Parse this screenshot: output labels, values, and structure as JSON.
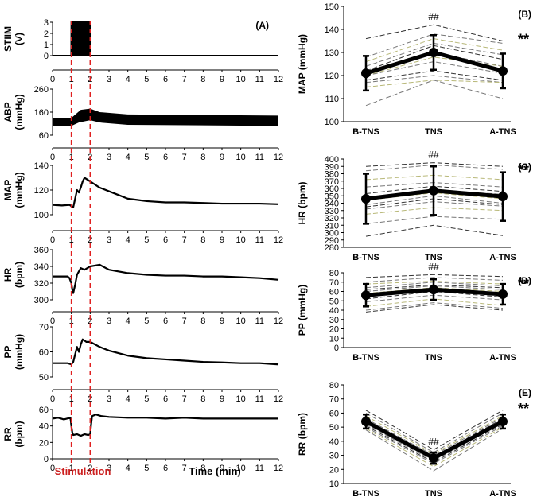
{
  "figure": {
    "panel_A_label": "(A)",
    "time_axis_label": "Time (min)",
    "stimulation_label": "Stimulation",
    "stimulation_window": [
      1,
      2
    ],
    "colors": {
      "trace": "#000000",
      "stim_line": "#e02020",
      "stim_text": "#cc1f1f",
      "grid_dash": "#444444",
      "olive": "#b8b878"
    }
  },
  "chart_data": [
    {
      "type": "line",
      "panel": "A",
      "title": "",
      "ylabel": "STIIM",
      "yunit": "(V)",
      "x_ticks": [
        0,
        1,
        2,
        3,
        4,
        5,
        6,
        7,
        8,
        9,
        10,
        11,
        12
      ],
      "ylim": [
        0,
        3
      ],
      "y_ticks": [
        0,
        1,
        2,
        3
      ],
      "series": [
        {
          "name": "STIIM",
          "points": [
            [
              0,
              0
            ],
            [
              0.99,
              0
            ],
            [
              1,
              3
            ],
            [
              1.99,
              3
            ],
            [
              2,
              0
            ],
            [
              12,
              0
            ]
          ]
        }
      ]
    },
    {
      "type": "line",
      "panel": "A",
      "ylabel": "ABP",
      "yunit": "(mmHg)",
      "x_ticks": [
        0,
        1,
        2,
        3,
        4,
        5,
        6,
        7,
        8,
        9,
        10,
        11,
        12
      ],
      "ylim": [
        60,
        260
      ],
      "y_ticks": [
        60,
        160,
        260
      ],
      "band": {
        "lower": [
          [
            0,
            100
          ],
          [
            1,
            100
          ],
          [
            1.4,
            115
          ],
          [
            2,
            125
          ],
          [
            2.5,
            115
          ],
          [
            4,
            105
          ],
          [
            12,
            100
          ]
        ],
        "upper": [
          [
            0,
            135
          ],
          [
            1,
            135
          ],
          [
            1.5,
            170
          ],
          [
            2,
            175
          ],
          [
            2.5,
            160
          ],
          [
            4,
            150
          ],
          [
            12,
            145
          ]
        ]
      }
    },
    {
      "type": "line",
      "panel": "A",
      "ylabel": "MAP",
      "yunit": "(mmHg)",
      "x_ticks": [
        0,
        1,
        2,
        3,
        4,
        5,
        6,
        7,
        8,
        9,
        10,
        11,
        12
      ],
      "ylim": [
        100,
        140
      ],
      "y_ticks": [
        100,
        120,
        140
      ],
      "series": [
        {
          "name": "MAP",
          "points": [
            [
              0,
              108
            ],
            [
              0.5,
              107.5
            ],
            [
              0.9,
              108
            ],
            [
              1.0,
              107
            ],
            [
              1.1,
              106
            ],
            [
              1.2,
              113
            ],
            [
              1.3,
              120
            ],
            [
              1.4,
              118
            ],
            [
              1.5,
              122
            ],
            [
              1.6,
              127
            ],
            [
              1.7,
              130
            ],
            [
              1.8,
              129
            ],
            [
              2.0,
              127
            ],
            [
              2.2,
              125
            ],
            [
              2.5,
              122
            ],
            [
              3,
              119
            ],
            [
              3.5,
              116
            ],
            [
              4,
              113
            ],
            [
              4.5,
              112
            ],
            [
              5,
              111
            ],
            [
              6,
              110
            ],
            [
              7,
              110
            ],
            [
              8,
              109.5
            ],
            [
              9,
              109
            ],
            [
              10,
              109
            ],
            [
              11,
              109
            ],
            [
              12,
              108.5
            ]
          ]
        }
      ]
    },
    {
      "type": "line",
      "panel": "A",
      "ylabel": "HR",
      "yunit": "(bpm)",
      "x_ticks": [
        0,
        1,
        2,
        3,
        4,
        5,
        6,
        7,
        8,
        9,
        10,
        11,
        12
      ],
      "ylim": [
        300,
        360
      ],
      "y_ticks": [
        300,
        320,
        340,
        360
      ],
      "series": [
        {
          "name": "HR",
          "points": [
            [
              0,
              328
            ],
            [
              0.8,
              328
            ],
            [
              0.9,
              326
            ],
            [
              1.0,
              320
            ],
            [
              1.05,
              312
            ],
            [
              1.1,
              308
            ],
            [
              1.2,
              318
            ],
            [
              1.3,
              330
            ],
            [
              1.5,
              338
            ],
            [
              1.7,
              336
            ],
            [
              2,
              340
            ],
            [
              2.5,
              342
            ],
            [
              3,
              336
            ],
            [
              4,
              332
            ],
            [
              5,
              330
            ],
            [
              6,
              329
            ],
            [
              7,
              329
            ],
            [
              8,
              328
            ],
            [
              9,
              328
            ],
            [
              10,
              327
            ],
            [
              11,
              326
            ],
            [
              12,
              324
            ]
          ]
        }
      ]
    },
    {
      "type": "line",
      "panel": "A",
      "ylabel": "PP",
      "yunit": "(mmHg)",
      "x_ticks": [
        0,
        1,
        2,
        3,
        4,
        5,
        6,
        7,
        8,
        9,
        10,
        11,
        12
      ],
      "ylim": [
        50,
        70
      ],
      "y_ticks": [
        50,
        60,
        70
      ],
      "series": [
        {
          "name": "PP",
          "points": [
            [
              0,
              55.5
            ],
            [
              0.8,
              55.5
            ],
            [
              1.0,
              55
            ],
            [
              1.1,
              56
            ],
            [
              1.2,
              59
            ],
            [
              1.3,
              62
            ],
            [
              1.4,
              60
            ],
            [
              1.5,
              63
            ],
            [
              1.6,
              65
            ],
            [
              1.8,
              64
            ],
            [
              2,
              64
            ],
            [
              2.5,
              62
            ],
            [
              3,
              60.5
            ],
            [
              4,
              58.5
            ],
            [
              5,
              57.5
            ],
            [
              6,
              57
            ],
            [
              7,
              56.5
            ],
            [
              8,
              56
            ],
            [
              9,
              55.8
            ],
            [
              10,
              55.5
            ],
            [
              11,
              55.5
            ],
            [
              12,
              55
            ]
          ]
        }
      ]
    },
    {
      "type": "line",
      "panel": "A",
      "ylabel": "RR",
      "yunit": "(bpm)",
      "x_ticks": [
        0,
        1,
        2,
        3,
        4,
        5,
        6,
        7,
        8,
        9,
        10,
        11,
        12
      ],
      "ylim": [
        0,
        60
      ],
      "y_ticks": [
        0,
        20,
        40,
        60
      ],
      "series": [
        {
          "name": "RR",
          "points": [
            [
              0,
              49
            ],
            [
              0.3,
              50
            ],
            [
              0.6,
              48
            ],
            [
              0.95,
              50
            ],
            [
              1.0,
              40
            ],
            [
              1.05,
              32
            ],
            [
              1.1,
              29
            ],
            [
              1.3,
              30
            ],
            [
              1.5,
              28
            ],
            [
              1.7,
              30
            ],
            [
              1.9,
              29
            ],
            [
              2.0,
              30
            ],
            [
              2.05,
              42
            ],
            [
              2.1,
              52
            ],
            [
              2.3,
              54
            ],
            [
              2.6,
              52
            ],
            [
              3,
              51
            ],
            [
              4,
              50
            ],
            [
              5,
              50
            ],
            [
              6,
              49
            ],
            [
              7,
              50
            ],
            [
              8,
              49
            ],
            [
              9,
              49
            ],
            [
              10,
              49
            ],
            [
              11,
              49
            ],
            [
              12,
              49
            ]
          ]
        }
      ]
    },
    {
      "type": "line",
      "panel": "B",
      "label": "(B)",
      "categories": [
        "B-TNS",
        "TNS",
        "A-TNS"
      ],
      "ylabel": "MAP (mmHg)",
      "ylim": [
        100,
        150
      ],
      "y_ticks": [
        100,
        110,
        120,
        130,
        140,
        150
      ],
      "mean": [
        121,
        130,
        122
      ],
      "error": [
        7.5,
        7.5,
        7.5
      ],
      "individual": [
        [
          136,
          142,
          135
        ],
        [
          128,
          138,
          134
        ],
        [
          126,
          136,
          131
        ],
        [
          124,
          134,
          129
        ],
        [
          122,
          133,
          127
        ],
        [
          122,
          130,
          124
        ],
        [
          120,
          128,
          124
        ],
        [
          120,
          126,
          121
        ],
        [
          118,
          122,
          118
        ],
        [
          117,
          120,
          117
        ],
        [
          115,
          118,
          117
        ],
        [
          107,
          118,
          110
        ]
      ],
      "sig_mid": "##",
      "sig_right": "**"
    },
    {
      "type": "line",
      "panel": "C",
      "label": "(C)",
      "categories": [
        "B-TNS",
        "TNS",
        "A-TNS"
      ],
      "ylabel": "HR (bpm)",
      "ylim": [
        280,
        400
      ],
      "y_ticks": [
        280,
        290,
        300,
        310,
        320,
        330,
        340,
        350,
        360,
        370,
        380,
        390,
        400
      ],
      "mean": [
        346,
        357,
        349
      ],
      "error": [
        34,
        33,
        33
      ],
      "individual": [
        [
          390,
          395,
          390
        ],
        [
          384,
          392,
          386
        ],
        [
          372,
          378,
          372
        ],
        [
          362,
          368,
          362
        ],
        [
          353,
          363,
          356
        ],
        [
          348,
          358,
          352
        ],
        [
          344,
          354,
          346
        ],
        [
          338,
          350,
          340
        ],
        [
          335,
          346,
          338
        ],
        [
          332,
          342,
          336
        ],
        [
          325,
          334,
          330
        ],
        [
          312,
          322,
          318
        ],
        [
          295,
          310,
          296
        ]
      ],
      "sig_mid": "##",
      "sig_right": "**"
    },
    {
      "type": "line",
      "panel": "D",
      "label": "(D)",
      "categories": [
        "B-TNS",
        "TNS",
        "A-TNS"
      ],
      "ylabel": "PP (mmHg)",
      "ylim": [
        0,
        80
      ],
      "y_ticks": [
        0,
        10,
        20,
        30,
        40,
        50,
        60,
        70,
        80
      ],
      "mean": [
        56,
        62,
        57
      ],
      "error": [
        12,
        11,
        11
      ],
      "individual": [
        [
          75,
          78,
          76
        ],
        [
          70,
          75,
          72
        ],
        [
          68,
          71,
          68
        ],
        [
          64,
          70,
          66
        ],
        [
          62,
          67,
          64
        ],
        [
          60,
          66,
          62
        ],
        [
          58,
          64,
          60
        ],
        [
          55,
          62,
          57
        ],
        [
          52,
          60,
          54
        ],
        [
          49,
          56,
          51
        ],
        [
          44,
          52,
          45
        ],
        [
          40,
          48,
          42
        ],
        [
          38,
          46,
          40
        ]
      ],
      "sig_mid": "##",
      "sig_right": "**"
    },
    {
      "type": "line",
      "panel": "E",
      "label": "(E)",
      "categories": [
        "B-TNS",
        "TNS",
        "A-TNS"
      ],
      "ylabel": "RR (bpm)",
      "ylim": [
        10,
        80
      ],
      "y_ticks": [
        10,
        20,
        30,
        40,
        50,
        60,
        70,
        80
      ],
      "mean": [
        54,
        28,
        54
      ],
      "error": [
        5,
        4,
        5
      ],
      "individual": [
        [
          62,
          34,
          62
        ],
        [
          60,
          32,
          60
        ],
        [
          58,
          31,
          58
        ],
        [
          56,
          30,
          57
        ],
        [
          55,
          29,
          56
        ],
        [
          54,
          28,
          55
        ],
        [
          53,
          27,
          54
        ],
        [
          52,
          26,
          53
        ],
        [
          51,
          25,
          52
        ],
        [
          50,
          24,
          51
        ],
        [
          49,
          22,
          50
        ],
        [
          48,
          19,
          49
        ]
      ],
      "sig_mid": "##",
      "sig_right": "**"
    }
  ]
}
